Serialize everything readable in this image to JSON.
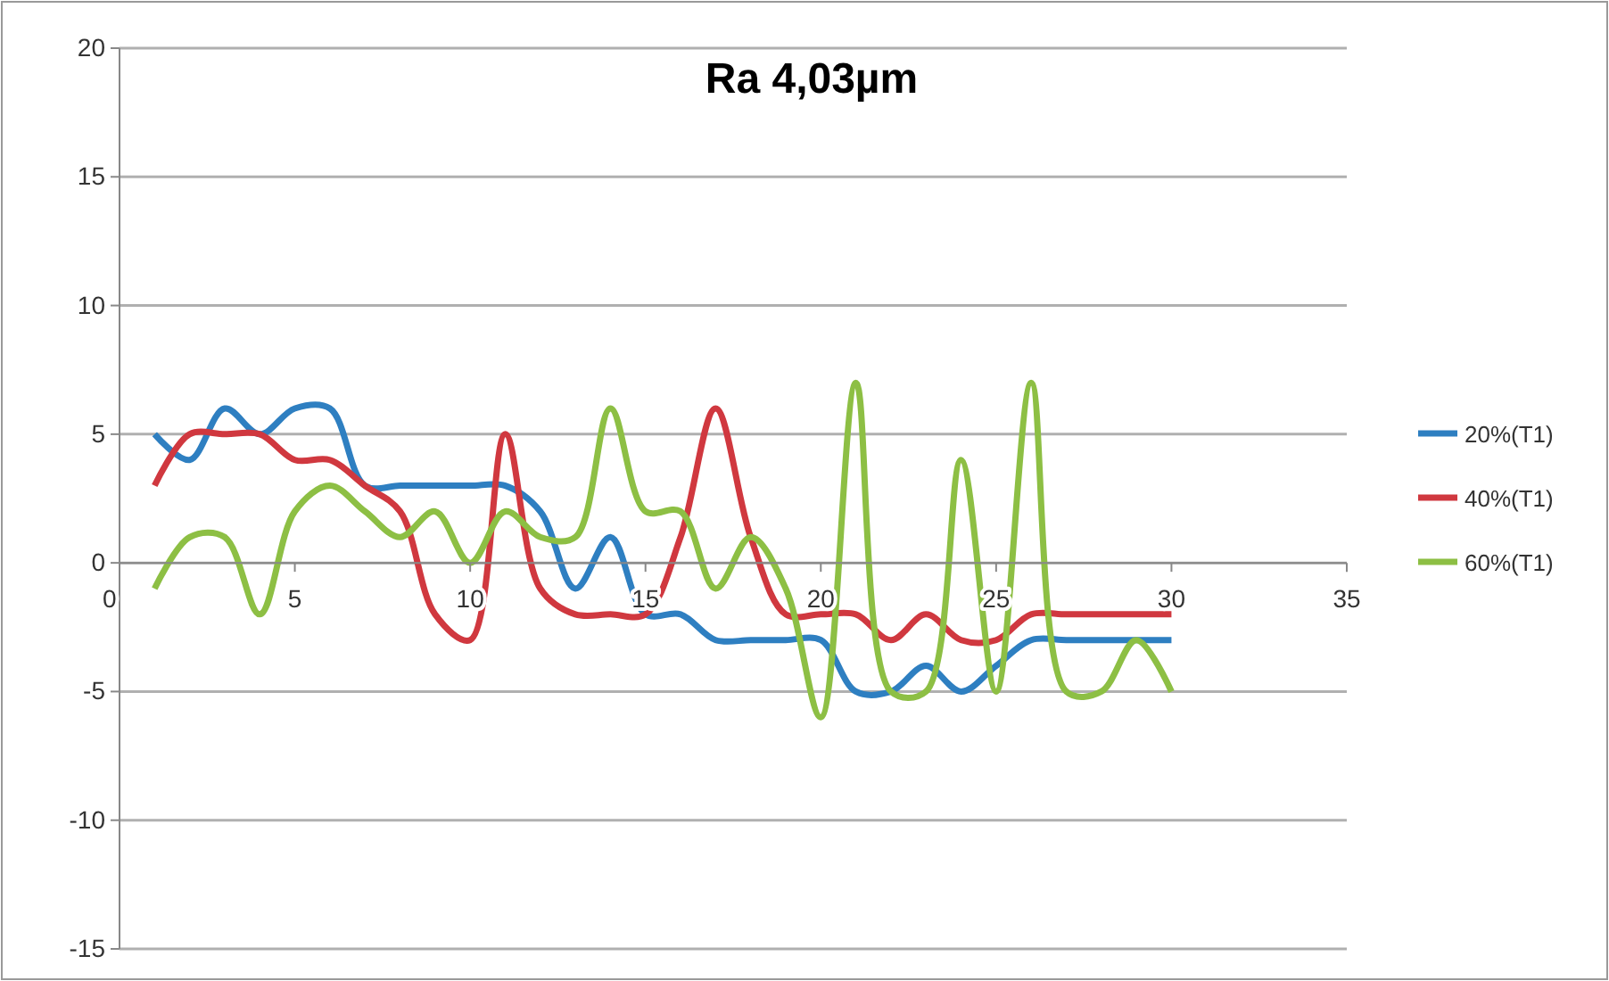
{
  "chart_data": {
    "type": "line",
    "title": "Ra 4,03µm",
    "x": [
      1,
      2,
      3,
      4,
      5,
      6,
      7,
      8,
      9,
      10,
      11,
      12,
      13,
      14,
      15,
      16,
      17,
      18,
      19,
      20,
      21,
      22,
      23,
      24,
      25,
      26,
      27,
      28,
      29,
      30
    ],
    "series": [
      {
        "name": "20%(T1)",
        "color": "#2e7fc1",
        "values": [
          5,
          4,
          6,
          5,
          6,
          6,
          3,
          3,
          3,
          3,
          3,
          2,
          -1,
          1,
          -2,
          -2,
          -3,
          -3,
          -3,
          -3,
          -5,
          -5,
          -4,
          -5,
          -4,
          -3,
          -3,
          -3,
          -3,
          -3
        ]
      },
      {
        "name": "40%(T1)",
        "color": "#d0383f",
        "values": [
          3,
          5,
          5,
          5,
          4,
          4,
          3,
          2,
          -2,
          -3,
          5,
          -1,
          -2,
          -2,
          -2,
          1,
          6,
          1,
          -2,
          -2,
          -2,
          -3,
          -2,
          -3,
          -3,
          -2,
          -2,
          -2,
          -2,
          -2
        ]
      },
      {
        "name": "60%(T1)",
        "color": "#8dbf44",
        "values": [
          -1,
          1,
          1,
          -2,
          2,
          3,
          2,
          1,
          2,
          0,
          2,
          1,
          1,
          6,
          2,
          2,
          -1,
          1,
          -1,
          -6,
          7,
          -5,
          -5,
          4,
          -5,
          7,
          -5,
          -5,
          -3,
          -5
        ]
      }
    ],
    "xlim": [
      0,
      35
    ],
    "xticks": [
      0,
      5,
      10,
      15,
      20,
      25,
      30,
      35
    ],
    "ylim": [
      -15,
      20
    ],
    "yticks": [
      -15,
      -10,
      -5,
      0,
      5,
      10,
      15,
      20
    ],
    "grid": "y",
    "legend": "right",
    "marker": "none",
    "line_style": "solid"
  }
}
